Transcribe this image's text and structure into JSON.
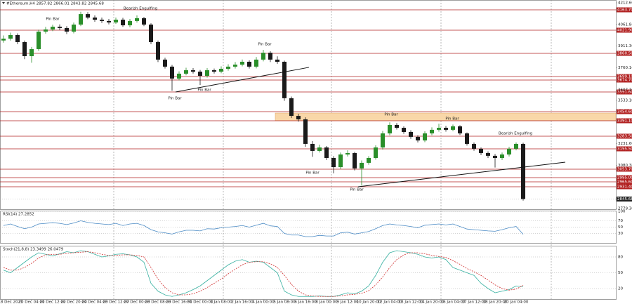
{
  "chart_data": [
    {
      "type": "candlestick",
      "title": "#Ethereum,H4",
      "header_ohlc": [
        2857.82,
        2866.01,
        2843.82,
        2845.68
      ],
      "up_color": "#2a8f2a",
      "down_color": "#1a1a1a",
      "xlim": [
        -0.5,
        87.2
      ],
      "ylim": [
        2774.94,
        4232.16
      ],
      "open": [
        3950,
        3963,
        3988,
        3939,
        3841,
        3890,
        4012,
        4027,
        4046,
        4037,
        4012,
        4061,
        4134,
        4110,
        4095,
        4086,
        4076,
        4095,
        4056,
        4086,
        4105,
        4061,
        3939,
        3817,
        3768,
        3685,
        3719,
        3743,
        3733,
        3704,
        3743,
        3733,
        3753,
        3768,
        3782,
        3802,
        3768,
        3817,
        3865,
        3817,
        3802,
        3548,
        3425,
        3401,
        3230,
        3181,
        3205,
        3132,
        3068,
        3156,
        3166,
        3059,
        3098,
        3132,
        3205,
        3303,
        3362,
        3342,
        3313,
        3279,
        3254,
        3303,
        3328,
        3342,
        3328,
        3352,
        3303,
        3230,
        3196,
        3166,
        3147,
        3132,
        3156,
        3196,
        3230
      ],
      "high": [
        3985,
        4005,
        4000,
        3950,
        3905,
        4025,
        4045,
        4060,
        4062,
        4050,
        4075,
        4150,
        4148,
        4125,
        4110,
        4100,
        4110,
        4108,
        4100,
        4125,
        4115,
        4070,
        3950,
        3830,
        3780,
        3735,
        3760,
        3758,
        3745,
        3758,
        3755,
        3770,
        3785,
        3800,
        3818,
        3812,
        3835,
        3885,
        3875,
        3840,
        3810,
        3560,
        3440,
        3415,
        3250,
        3225,
        3215,
        3145,
        3170,
        3185,
        3175,
        3115,
        3145,
        3220,
        3320,
        3380,
        3375,
        3352,
        3325,
        3290,
        3318,
        3345,
        3370,
        3355,
        3365,
        3360,
        3310,
        3240,
        3205,
        3178,
        3160,
        3170,
        3210,
        3240,
        3238
      ],
      "low": [
        3935,
        3950,
        3925,
        3820,
        3795,
        3878,
        3998,
        4015,
        4022,
        3995,
        4000,
        4050,
        4098,
        4080,
        4072,
        4062,
        4065,
        4045,
        4042,
        4075,
        4050,
        3925,
        3800,
        3755,
        3600,
        3672,
        3708,
        3720,
        3640,
        3692,
        3720,
        3722,
        3740,
        3755,
        3770,
        3755,
        3756,
        3805,
        3800,
        3788,
        3530,
        3410,
        3385,
        3210,
        3140,
        3170,
        3118,
        3025,
        3055,
        3142,
        3045,
        2940,
        3085,
        3120,
        3190,
        3290,
        3330,
        3300,
        3265,
        3240,
        3242,
        3290,
        3315,
        3315,
        3318,
        3292,
        3218,
        3182,
        3152,
        3132,
        3065,
        3118,
        3142,
        3185,
        2835
      ],
      "close": [
        3963,
        3988,
        3939,
        3841,
        3890,
        4012,
        4027,
        4046,
        4037,
        4012,
        4061,
        4134,
        4110,
        4095,
        4086,
        4076,
        4095,
        4056,
        4086,
        4105,
        4061,
        3939,
        3817,
        3768,
        3685,
        3719,
        3743,
        3733,
        3704,
        3743,
        3733,
        3753,
        3768,
        3782,
        3802,
        3768,
        3817,
        3865,
        3817,
        3802,
        3548,
        3425,
        3401,
        3230,
        3181,
        3205,
        3132,
        3068,
        3156,
        3166,
        3059,
        3098,
        3132,
        3205,
        3303,
        3362,
        3342,
        3313,
        3279,
        3254,
        3303,
        3328,
        3342,
        3328,
        3352,
        3303,
        3230,
        3196,
        3166,
        3147,
        3132,
        3156,
        3196,
        3230,
        2845.68
      ],
      "yticks": [
        {
          "value": 4212.6,
          "label": "4212.60"
        },
        {
          "value": 4061.84,
          "label": "4061.84"
        },
        {
          "value": 3911.36,
          "label": "3911.36"
        },
        {
          "value": 3760.14,
          "label": "3760.14"
        },
        {
          "value": 3607.16,
          "label": "3607.16"
        },
        {
          "value": 3533.1,
          "label": "3533.10"
        },
        {
          "value": 3231.6,
          "label": "3231.60"
        },
        {
          "value": 3080.38,
          "label": "3080.38"
        },
        {
          "value": 2779.36,
          "label": "2779.36"
        }
      ],
      "xticks": [
        {
          "value": 1,
          "label": "18 Dec 2021"
        },
        {
          "value": 4,
          "label": "20 Dec 04:00"
        },
        {
          "value": 7,
          "label": "21 Dec 12:00"
        },
        {
          "value": 10,
          "label": "22 Dec 20:00"
        },
        {
          "value": 13,
          "label": "24 Dec 04:00"
        },
        {
          "value": 16,
          "label": "25 Dec 12:00"
        },
        {
          "value": 19,
          "label": "27 Dec 00:00"
        },
        {
          "value": 22,
          "label": "28 Dec 08:00"
        },
        {
          "value": 25,
          "label": "29 Dec 16:00"
        },
        {
          "value": 28,
          "label": "31 Dec 00:00"
        },
        {
          "value": 31,
          "label": "1 Jan 08:00"
        },
        {
          "value": 34,
          "label": "2 Jan 16:00"
        },
        {
          "value": 37,
          "label": "4 Jan 00:00"
        },
        {
          "value": 40,
          "label": "5 Jan 08:00"
        },
        {
          "value": 43,
          "label": "6 Jan 16:00"
        },
        {
          "value": 46,
          "label": "8 Jan 00:00"
        },
        {
          "value": 49,
          "label": "9 Jan 12:00"
        },
        {
          "value": 52,
          "label": "10 Jan 20:00"
        },
        {
          "value": 55,
          "label": "12 Jan 04:00"
        },
        {
          "value": 58,
          "label": "13 Jan 12:00"
        },
        {
          "value": 61,
          "label": "14 Jan 20:00"
        },
        {
          "value": 64,
          "label": "16 Jan 04:00"
        },
        {
          "value": 67,
          "label": "17 Jan 12:00"
        },
        {
          "value": 70,
          "label": "18 Jan 20:00"
        },
        {
          "value": 73,
          "label": "20 Jan 04:00"
        }
      ],
      "level_color": "#b22222",
      "levels": [
        {
          "value": 4163.7,
          "label": "4163.70"
        },
        {
          "value": 4021.9,
          "label": "4021.90"
        },
        {
          "value": 3860.5,
          "label": "3860.50"
        },
        {
          "value": 3699.1,
          "label": "3699.10"
        },
        {
          "value": 3674.7,
          "label": "3674.70"
        },
        {
          "value": 3591.6,
          "label": "3591.60"
        },
        {
          "value": 3454.6,
          "label": "3454.60"
        },
        {
          "value": 3391.1,
          "label": "3391.10"
        },
        {
          "value": 3283.5,
          "label": "3283.50"
        },
        {
          "value": 3195.5,
          "label": "3195.50"
        },
        {
          "value": 3053.7,
          "label": "3053.70"
        },
        {
          "value": 2995,
          "label": "2995.00"
        },
        {
          "value": 2965.6,
          "label": "2965.60"
        },
        {
          "value": 2931.4,
          "label": "2931.40"
        }
      ],
      "zone": [
        3391.1,
        3444.9
      ],
      "zone_color": "#f9d7a8",
      "trendlines": [
        {
          "x": [
            24.5,
            43.5
          ],
          "y": [
            3591.6,
            3763
          ]
        },
        {
          "x": [
            50.5,
            80
          ],
          "y": [
            2931.4,
            3102.6
          ]
        }
      ],
      "annotations": [
        "Pin Bar",
        "Bearish Engulfing",
        "Pin Bar",
        "Pin Bar",
        "Pin Bar",
        "Pin Bar",
        "Pin Bar",
        "Bearish Engulfing",
        "Pin Bar",
        "Pin Bar"
      ]
    },
    {
      "type": "line",
      "title": "RSI(14)",
      "ylim": [
        0,
        100
      ],
      "yticks": [
        30,
        50,
        70,
        100
      ],
      "series": [
        {
          "color": "#4a8ac4",
          "style": "solid",
          "values": [
            55,
            60,
            52,
            45,
            50,
            60,
            62,
            64,
            62,
            58,
            63,
            70,
            65,
            62,
            60,
            58,
            62,
            55,
            60,
            62,
            55,
            42,
            35,
            32,
            28,
            35,
            40,
            40,
            38,
            45,
            44,
            48,
            50,
            52,
            55,
            50,
            56,
            62,
            54,
            52,
            30,
            25,
            25,
            20,
            20,
            24,
            22,
            22,
            32,
            34,
            28,
            32,
            36,
            45,
            55,
            60,
            57,
            55,
            52,
            48,
            56,
            58,
            60,
            57,
            60,
            52,
            44,
            42,
            40,
            38,
            37,
            42,
            48,
            52,
            27.2852
          ]
        }
      ]
    },
    {
      "type": "line",
      "title": "Stoch(21,8,8)",
      "ylim": [
        0,
        100
      ],
      "yticks": [
        20,
        50,
        80
      ],
      "series": [
        {
          "color": "#36b0a0",
          "style": "solid",
          "values": [
            55,
            50,
            60,
            70,
            80,
            88,
            85,
            82,
            86,
            90,
            88,
            92,
            90,
            85,
            80,
            82,
            85,
            86,
            84,
            80,
            70,
            30,
            15,
            8,
            5,
            8,
            12,
            18,
            25,
            35,
            45,
            55,
            65,
            72,
            75,
            70,
            72,
            70,
            60,
            50,
            15,
            8,
            5,
            5,
            5,
            6,
            5,
            5,
            8,
            12,
            10,
            15,
            25,
            45,
            70,
            88,
            92,
            90,
            88,
            85,
            80,
            78,
            80,
            75,
            60,
            55,
            50,
            45,
            30,
            20,
            12,
            15,
            18,
            25,
            23.3499
          ]
        },
        {
          "color": "#d03030",
          "style": "dashed",
          "values": [
            60,
            55,
            55,
            60,
            68,
            78,
            84,
            85,
            85,
            87,
            88,
            89,
            90,
            88,
            85,
            83,
            83,
            84,
            84,
            83,
            80,
            60,
            38,
            22,
            12,
            8,
            8,
            10,
            15,
            22,
            30,
            38,
            48,
            57,
            65,
            70,
            71,
            71,
            67,
            60,
            45,
            28,
            15,
            8,
            6,
            5,
            5,
            5,
            6,
            8,
            9,
            11,
            16,
            27,
            42,
            60,
            75,
            84,
            88,
            88,
            86,
            83,
            81,
            79,
            73,
            66,
            58,
            52,
            45,
            36,
            27,
            20,
            17,
            19,
            26.0479
          ]
        }
      ]
    }
  ]
}
